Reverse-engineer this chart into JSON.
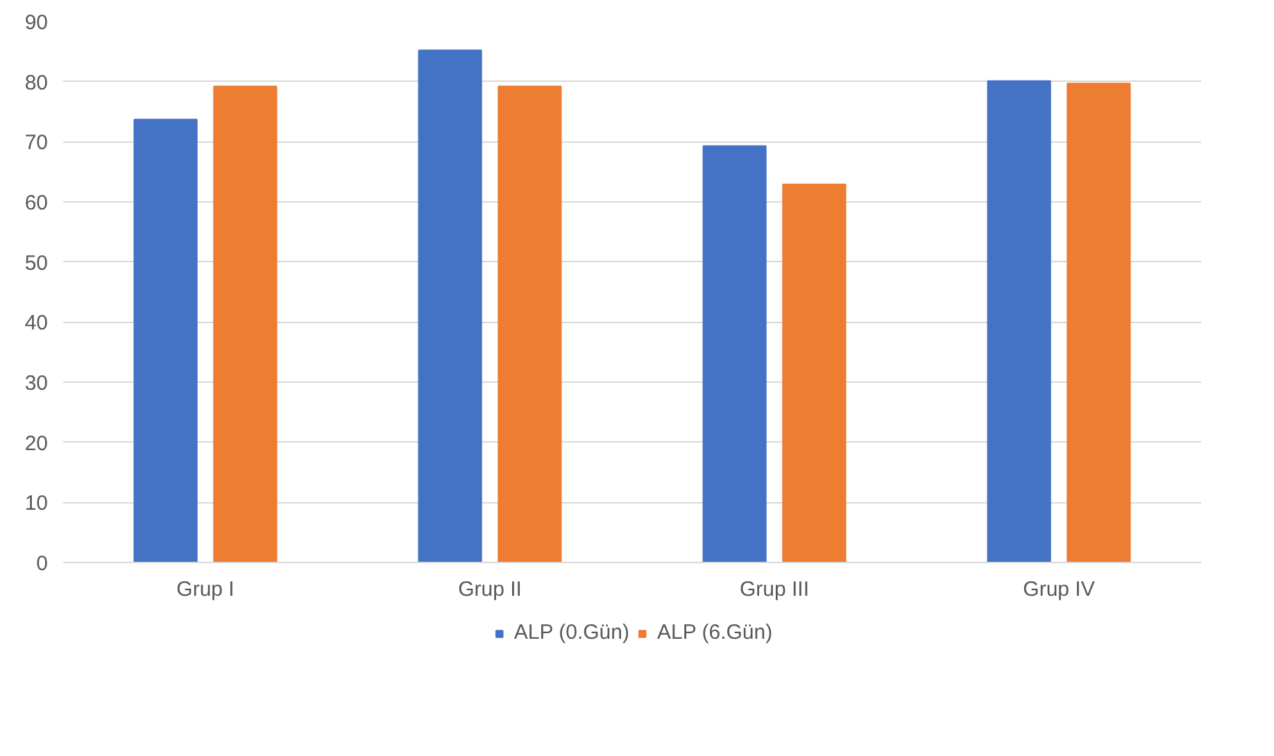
{
  "chart_data": {
    "type": "bar",
    "categories": [
      "Grup I",
      "Grup II",
      "Grup III",
      "Grup IV"
    ],
    "series": [
      {
        "name": "ALP (0.Gün)",
        "color": "#4472c4",
        "values": [
          73.7,
          85.2,
          69.3,
          80.1
        ]
      },
      {
        "name": "ALP (6.Gün)",
        "color": "#ed7d31",
        "values": [
          79.2,
          79.2,
          62.9,
          79.7
        ]
      }
    ],
    "ylim": [
      0,
      90
    ],
    "yticks": [
      0,
      10,
      20,
      30,
      40,
      50,
      60,
      70,
      80,
      90
    ],
    "grid": "y",
    "legend": "bottom"
  }
}
